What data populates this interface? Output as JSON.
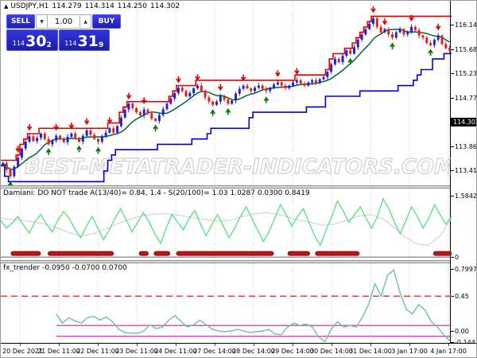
{
  "header": {
    "symbol_label": "USDJPY,H1",
    "open": "114.279",
    "high": "114.314",
    "low": "114.250",
    "close": "114.302"
  },
  "trade_panel": {
    "sell_label": "SELL",
    "buy_label": "BUY",
    "lot_size": "1.00",
    "sell_price_small": "114",
    "sell_price_big": "30",
    "sell_price_sup": "2",
    "buy_price_small": "114",
    "buy_price_big": "31",
    "buy_price_sup": "9",
    "spin_down_glyph": "▼",
    "spin_up_glyph": "▲",
    "collapse_glyph": "▲"
  },
  "watermark": "BEST-METATRADER-INDICATORS.COM",
  "colors": {
    "candle_up": "#2323cc",
    "candle_down": "#dd2222",
    "ma_green": "#006633",
    "support_blue": "#0000dd",
    "resistance_red": "#e80000",
    "arrow_sell": "#e00000",
    "arrow_buy": "#007700",
    "damiani_green": "#55e07a",
    "damiani_gray": "#cdcdcd",
    "blocks_red": "#b41717",
    "fx_green": "#6cc39a",
    "fx_magenta": "#d42fb4",
    "fx_dashed_red": "#e04444",
    "grid": "#c9c9c9",
    "trade_blue": "#2a2ad0",
    "current_price_bg": "#000000"
  },
  "price_axis": {
    "main_ticks": [
      {
        "label": "116.140",
        "value": 116.14
      },
      {
        "label": "115.685",
        "value": 115.685
      },
      {
        "label": "115.230",
        "value": 115.23
      },
      {
        "label": "114.775",
        "value": 114.775
      },
      {
        "label": "113.865",
        "value": 113.865
      },
      {
        "label": "113.410",
        "value": 113.41
      }
    ],
    "current": {
      "label": "114.302",
      "value": 114.302
    },
    "damiani_ticks": [
      {
        "label": "1.5842",
        "value": 1.5842
      },
      {
        "label": "0",
        "value": 0
      }
    ],
    "fx_ticks": [
      {
        "label": "0.7997",
        "value": 0.7997
      },
      {
        "label": "0.45",
        "value": 0.45
      },
      {
        "label": "0.00",
        "value": 0
      },
      {
        "label": "-0.1441",
        "value": -0.1441
      }
    ]
  },
  "chart_data": [
    {
      "type": "candlestick",
      "title": "USDJPY,H1 114.279 114.314 114.250 114.302",
      "ylim": [
        113.13,
        116.59
      ],
      "x_labels": [
        "20 Dec 2021",
        "21 Dec 11:00",
        "22 Dec 11:00",
        "23 Dec 11:00",
        "24 Dec 11:00",
        "27 Dec 14:00",
        "28 Dec 14:00",
        "29 Dec 14:00",
        "30 Dec 14:00",
        "31 Dec 14:00",
        "3 Jan 17:00",
        "4 Jan 17:00"
      ],
      "closes": [
        113.55,
        113.42,
        113.3,
        113.48,
        113.65,
        113.82,
        113.95,
        114.05,
        113.96,
        114.02,
        114.1,
        114.0,
        113.9,
        113.97,
        114.06,
        114.0,
        113.94,
        114.04,
        114.1,
        114.02,
        113.95,
        114.06,
        114.16,
        114.08,
        114.0,
        113.95,
        114.05,
        114.12,
        114.2,
        114.12,
        114.24,
        114.4,
        114.55,
        114.66,
        114.58,
        114.5,
        114.44,
        114.55,
        114.48,
        114.38,
        114.34,
        114.45,
        114.56,
        114.66,
        114.76,
        114.86,
        114.96,
        114.9,
        114.8,
        114.86,
        114.95,
        115.0,
        114.9,
        114.78,
        114.7,
        114.64,
        114.7,
        114.8,
        114.74,
        114.66,
        114.72,
        114.85,
        114.94,
        115.0,
        114.95,
        114.9,
        114.96,
        115.0,
        114.94,
        114.9,
        114.96,
        115.02,
        115.06,
        115.0,
        114.95,
        115.0,
        115.06,
        115.1,
        115.04,
        115.0,
        115.06,
        115.1,
        115.05,
        115.12,
        115.16,
        115.26,
        115.4,
        115.5,
        115.44,
        115.56,
        115.66,
        115.6,
        115.72,
        115.86,
        115.96,
        116.06,
        116.16,
        116.26,
        116.1,
        116.0,
        116.06,
        115.96,
        115.9,
        116.0,
        116.06,
        115.96,
        116.0,
        116.1,
        116.04,
        115.94,
        115.9,
        115.8,
        115.76,
        115.86,
        115.94,
        115.78,
        115.7,
        115.66
      ],
      "sell_arrow_indices": [
        4,
        7,
        14,
        18,
        22,
        28,
        33,
        37,
        46,
        51,
        57,
        63,
        72,
        77,
        97,
        100,
        107,
        114
      ],
      "buy_arrow_indices": [
        2,
        12,
        20,
        25,
        40,
        55,
        59,
        69,
        91,
        102,
        112
      ],
      "overlays": [
        "trailing resistance (red step line)",
        "trailing support (blue step line)",
        "moving average (green line)"
      ]
    },
    {
      "type": "line",
      "title": "Damiani: DO NOT trade A(13/40)= 0.84, 1.4 - S(20/100)= 1.03  1.0287 0.0300 0.8419",
      "ylim": [
        -0.08,
        1.77
      ],
      "y_ticks": [
        1.5842,
        0
      ],
      "series": [
        {
          "name": "volatility (green)",
          "values": [
            0.95,
            0.75,
            0.88,
            1.05,
            0.82,
            0.62,
            0.92,
            1.1,
            0.85,
            0.65,
            0.95,
            1.18,
            1.0,
            0.72,
            0.5,
            0.8,
            1.05,
            0.75,
            0.45,
            0.7,
            1.0,
            1.25,
            0.95,
            0.65,
            0.9,
            1.15,
            0.9,
            0.6,
            0.35,
            0.75,
            1.1,
            0.9,
            0.7,
            1.0,
            1.2,
            0.85,
            0.55,
            0.85,
            1.1,
            0.8,
            0.5,
            0.75,
            1.05,
            1.3,
            1.0,
            0.7,
            0.4,
            0.65,
            1.0,
            1.35,
            1.1,
            0.8,
            1.05,
            1.25,
            0.9,
            0.55,
            0.3,
            0.7,
            1.05,
            1.45,
            1.2,
            0.9,
            1.1,
            1.3,
            1.0,
            0.75,
            1.05,
            1.5,
            1.25,
            0.9,
            0.6,
            0.95,
            1.3,
            1.05,
            0.75,
            1.0,
            1.35,
            1.1,
            0.85,
            1.05
          ]
        },
        {
          "name": "threshold (silver)",
          "values": [
            1.0,
            0.97,
            0.94,
            0.9,
            0.84,
            0.74,
            0.62,
            0.55,
            0.6,
            0.72,
            0.85,
            0.96,
            1.05,
            1.1,
            1.12,
            1.1,
            1.05,
            1.0,
            0.96,
            0.92,
            0.96,
            1.05,
            1.12,
            1.15,
            1.1,
            1.02,
            0.94,
            0.88,
            0.82,
            0.86,
            0.96,
            1.06,
            1.1,
            1.0,
            0.78,
            0.52,
            0.34,
            0.3,
            0.55,
            1.0
          ]
        }
      ],
      "do_not_trade_blocks_x_fraction": [
        [
          0.023,
          0.088
        ],
        [
          0.105,
          0.25
        ],
        [
          0.307,
          0.327
        ],
        [
          0.34,
          0.375
        ],
        [
          0.39,
          0.605
        ],
        [
          0.637,
          0.685
        ],
        [
          0.698,
          0.795
        ],
        [
          0.96,
          1.0
        ]
      ]
    },
    {
      "type": "line",
      "title": "fx_trender -0.0950 -0.0700 0.0700",
      "ylim": [
        -0.155,
        0.875
      ],
      "y_ticks": [
        0.7997,
        0.45,
        0,
        -0.1441
      ],
      "x_start_fraction": 0.123,
      "levels": {
        "dashed_red": 0.45,
        "magenta_upper": 0.07,
        "magenta_lower": -0.07
      },
      "series": [
        {
          "name": "fx_trender (green)",
          "values": [
            0.22,
            0.1,
            0.17,
            0.13,
            0.1,
            0.17,
            0.19,
            0.14,
            0.18,
            0.12,
            0.02,
            -0.02,
            -0.03,
            -0.03,
            0.0,
            0.08,
            0.03,
            0.05,
            0.14,
            0.2,
            0.12,
            0.05,
            0.08,
            0.14,
            0.08,
            0.02,
            0.0,
            -0.01,
            0.0,
            0.02,
            0.0,
            -0.02,
            -0.01,
            0.0,
            0.02,
            -0.04,
            -0.05,
            0.05,
            0.1,
            0.07,
            0.09,
            0.05,
            -0.08,
            -0.14,
            0.02,
            0.12,
            0.05,
            0.07,
            0.05,
            0.18,
            0.35,
            0.61,
            0.45,
            0.72,
            0.79,
            0.5,
            0.28,
            0.22,
            0.34,
            0.27,
            0.12,
            0.05,
            -0.05,
            -0.13
          ]
        }
      ]
    }
  ]
}
